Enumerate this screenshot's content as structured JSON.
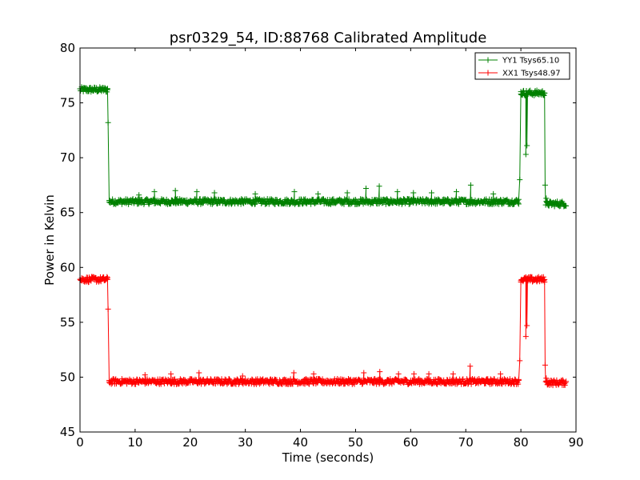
{
  "chart_data": {
    "type": "line",
    "title": "psr0329_54, ID:88768 Calibrated Amplitude",
    "xlabel": "Time (seconds)",
    "ylabel": "Power in Kelvin",
    "xlim": [
      0,
      90
    ],
    "ylim": [
      45,
      80
    ],
    "xticks": [
      0,
      10,
      20,
      30,
      40,
      50,
      60,
      70,
      80,
      90
    ],
    "yticks": [
      45,
      50,
      55,
      60,
      65,
      70,
      75,
      80
    ],
    "grid": false,
    "legend_position": "top-right",
    "marker": "plus",
    "series": [
      {
        "name": "YY1 Tsys65.10",
        "color": "#008000",
        "base_levels": [
          {
            "x_start": 0.0,
            "x_end": 5.0,
            "level": 76.2
          },
          {
            "x_start": 5.3,
            "x_end": 79.6,
            "level": 66.0
          },
          {
            "x_start": 80.0,
            "x_end": 84.3,
            "level": 75.9
          },
          {
            "x_start": 84.5,
            "x_end": 88.2,
            "level": 65.8
          }
        ],
        "points": [
          [
            4.6,
            76.2
          ],
          [
            5.0,
            76.2
          ],
          [
            5.1,
            73.2
          ],
          [
            5.3,
            66.1
          ],
          [
            79.3,
            66.0
          ],
          [
            79.6,
            66.2
          ],
          [
            79.8,
            68.0
          ],
          [
            80.0,
            75.8
          ],
          [
            80.9,
            70.3
          ],
          [
            81.1,
            71.1
          ],
          [
            81.3,
            75.8
          ],
          [
            84.1,
            75.9
          ],
          [
            84.3,
            75.9
          ],
          [
            84.4,
            67.5
          ],
          [
            84.6,
            66.3
          ],
          [
            84.8,
            65.9
          ]
        ],
        "spikes": [
          [
            10.7,
            66.6
          ],
          [
            13.5,
            66.9
          ],
          [
            17.3,
            67.0
          ],
          [
            21.2,
            66.9
          ],
          [
            24.4,
            66.8
          ],
          [
            31.8,
            66.7
          ],
          [
            38.9,
            66.9
          ],
          [
            43.2,
            66.7
          ],
          [
            48.5,
            66.8
          ],
          [
            51.9,
            67.2
          ],
          [
            54.3,
            67.4
          ],
          [
            57.6,
            66.9
          ],
          [
            60.5,
            66.8
          ],
          [
            63.8,
            66.8
          ],
          [
            68.3,
            66.9
          ],
          [
            70.9,
            67.5
          ],
          [
            75.0,
            66.7
          ]
        ]
      },
      {
        "name": "XX1 Tsys48.97",
        "color": "#ff0000",
        "base_levels": [
          {
            "x_start": 0.0,
            "x_end": 5.0,
            "level": 58.9
          },
          {
            "x_start": 5.3,
            "x_end": 79.6,
            "level": 49.6
          },
          {
            "x_start": 80.0,
            "x_end": 84.3,
            "level": 58.9
          },
          {
            "x_start": 84.5,
            "x_end": 88.2,
            "level": 49.5
          }
        ],
        "points": [
          [
            4.6,
            58.9
          ],
          [
            5.0,
            58.9
          ],
          [
            5.1,
            56.2
          ],
          [
            5.3,
            49.7
          ],
          [
            79.3,
            49.6
          ],
          [
            79.6,
            49.7
          ],
          [
            79.8,
            51.5
          ],
          [
            80.0,
            58.8
          ],
          [
            80.9,
            53.7
          ],
          [
            81.1,
            54.7
          ],
          [
            81.3,
            58.8
          ],
          [
            84.1,
            58.9
          ],
          [
            84.3,
            58.9
          ],
          [
            84.4,
            51.1
          ],
          [
            84.6,
            49.9
          ],
          [
            84.8,
            49.6
          ]
        ],
        "spikes": [
          [
            11.8,
            50.2
          ],
          [
            16.5,
            50.3
          ],
          [
            21.6,
            50.4
          ],
          [
            29.5,
            50.1
          ],
          [
            38.8,
            50.4
          ],
          [
            42.4,
            50.3
          ],
          [
            51.5,
            50.4
          ],
          [
            54.4,
            50.5
          ],
          [
            57.8,
            50.3
          ],
          [
            60.6,
            50.3
          ],
          [
            63.3,
            50.3
          ],
          [
            67.7,
            50.3
          ],
          [
            70.8,
            51.0
          ],
          [
            76.3,
            50.3
          ]
        ]
      }
    ]
  }
}
